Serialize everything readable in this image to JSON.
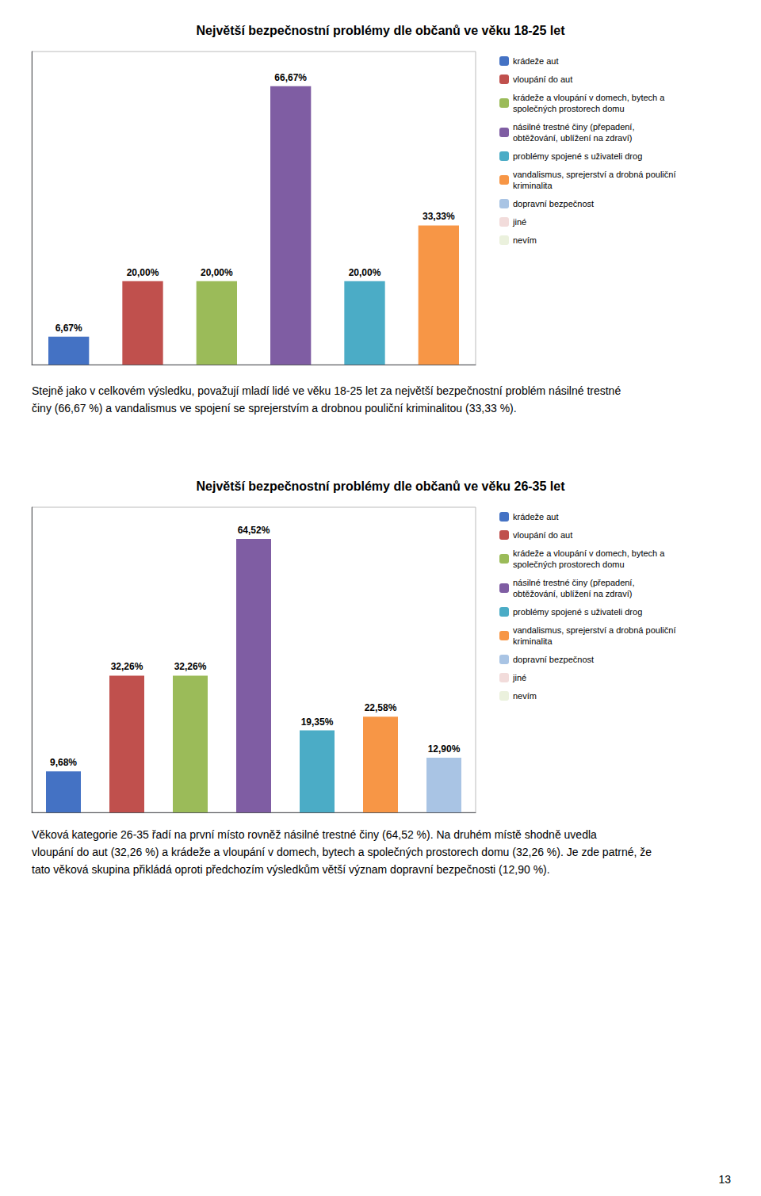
{
  "chart_data": [
    {
      "type": "bar",
      "title": "Největší bezpečnostní problémy dle občanů ve věku 18-25 let",
      "categories": [
        null,
        null,
        null,
        null,
        null,
        null
      ],
      "series": [
        {
          "name": "krádeže aut",
          "color": "#4472C4",
          "values": [
            6.67,
            null,
            null,
            null,
            null,
            null
          ],
          "value_labels": [
            "6,67%",
            null,
            null,
            null,
            null,
            null
          ]
        },
        {
          "name": "vloupání do aut",
          "color": "#C0504D",
          "values": [
            null,
            20.0,
            null,
            null,
            null,
            null
          ],
          "value_labels": [
            null,
            "20,00%",
            null,
            null,
            null,
            null
          ]
        },
        {
          "name": "krádeže a vloupání v domech, bytech a\nspolečných prostorech domu",
          "color": "#9BBB59",
          "values": [
            null,
            null,
            20.0,
            null,
            null,
            null
          ],
          "value_labels": [
            null,
            null,
            "20,00%",
            null,
            null,
            null
          ]
        },
        {
          "name": "násilné trestné činy (přepadení,\nobtěžování, ublížení na zdraví)",
          "color": "#7F5DA3",
          "values": [
            null,
            null,
            null,
            66.67,
            null,
            null
          ],
          "value_labels": [
            null,
            null,
            null,
            "66,67%",
            null,
            null
          ]
        },
        {
          "name": "problémy spojené s uživateli drog",
          "color": "#4BACC6",
          "values": [
            null,
            null,
            null,
            null,
            20.0,
            null
          ],
          "value_labels": [
            null,
            null,
            null,
            null,
            "20,00%",
            null
          ]
        },
        {
          "name": "vandalismus, sprejerství a drobná pouliční\nkriminalita",
          "color": "#F79646",
          "values": [
            null,
            null,
            null,
            null,
            null,
            33.33
          ],
          "value_labels": [
            null,
            null,
            null,
            null,
            null,
            "33,33%"
          ]
        },
        {
          "name": "dopravní bezpečnost",
          "color": "#A9C4E4",
          "values": [
            null,
            null,
            null,
            null,
            null,
            null
          ],
          "value_labels": [
            null,
            null,
            null,
            null,
            null,
            null
          ]
        },
        {
          "name": "jiné",
          "color": "#F2DCDB",
          "values": [
            null,
            null,
            null,
            null,
            null,
            null
          ],
          "value_labels": [
            null,
            null,
            null,
            null,
            null,
            null
          ]
        },
        {
          "name": "nevím",
          "color": "#EBF1DD",
          "values": [
            null,
            null,
            null,
            null,
            null,
            null
          ],
          "value_labels": [
            null,
            null,
            null,
            null,
            null,
            null
          ]
        }
      ],
      "ylim": [
        0,
        75
      ],
      "yticks": [],
      "grid": false,
      "tick_labels": false,
      "data_labels": true,
      "legend": "right",
      "annotations": [
        "Stejně jako v celkovém výsledku, považují mladí lidé ve věku 18-25 let za největší bezpečnostní problém násilné trestné činy (66,67 %) a vandalismus ve spojení se sprejerstvím a drobnou pouliční kriminalitou (33,33 %)."
      ]
    },
    {
      "type": "bar",
      "title": "Největší bezpečnostní problémy dle občanů ve věku 26-35 let",
      "categories": [
        null,
        null,
        null,
        null,
        null,
        null,
        null
      ],
      "series": [
        {
          "name": "krádeže aut",
          "color": "#4472C4",
          "values": [
            9.68,
            null,
            null,
            null,
            null,
            null,
            null
          ],
          "value_labels": [
            "9,68%",
            null,
            null,
            null,
            null,
            null,
            null
          ]
        },
        {
          "name": "vloupání do aut",
          "color": "#C0504D",
          "values": [
            null,
            32.26,
            null,
            null,
            null,
            null,
            null
          ],
          "value_labels": [
            null,
            "32,26%",
            null,
            null,
            null,
            null,
            null
          ]
        },
        {
          "name": "krádeže a vloupání v domech, bytech a\nspolečných prostorech domu",
          "color": "#9BBB59",
          "values": [
            null,
            null,
            32.26,
            null,
            null,
            null,
            null
          ],
          "value_labels": [
            null,
            null,
            "32,26%",
            null,
            null,
            null,
            null
          ]
        },
        {
          "name": "násilné trestné činy (přepadení,\nobtěžování, ublížení na zdraví)",
          "color": "#7F5DA3",
          "values": [
            null,
            null,
            null,
            64.52,
            null,
            null,
            null
          ],
          "value_labels": [
            null,
            null,
            null,
            "64,52%",
            null,
            null,
            null
          ]
        },
        {
          "name": "problémy spojené s uživateli drog",
          "color": "#4BACC6",
          "values": [
            null,
            null,
            null,
            null,
            19.35,
            null,
            null
          ],
          "value_labels": [
            null,
            null,
            null,
            null,
            "19,35%",
            null,
            null
          ]
        },
        {
          "name": "vandalismus, sprejerství a drobná pouliční\nkriminalita",
          "color": "#F79646",
          "values": [
            null,
            null,
            null,
            null,
            null,
            22.58,
            null
          ],
          "value_labels": [
            null,
            null,
            null,
            null,
            null,
            "22,58%",
            null
          ]
        },
        {
          "name": "dopravní bezpečnost",
          "color": "#A9C4E4",
          "values": [
            null,
            null,
            null,
            null,
            null,
            null,
            12.9
          ],
          "value_labels": [
            null,
            null,
            null,
            null,
            null,
            null,
            "12,90%"
          ]
        },
        {
          "name": "jiné",
          "color": "#F2DCDB",
          "values": [
            null,
            null,
            null,
            null,
            null,
            null,
            null
          ],
          "value_labels": [
            null,
            null,
            null,
            null,
            null,
            null,
            null
          ]
        },
        {
          "name": "nevím",
          "color": "#EBF1DD",
          "values": [
            null,
            null,
            null,
            null,
            null,
            null,
            null
          ],
          "value_labels": [
            null,
            null,
            null,
            null,
            null,
            null,
            null
          ]
        }
      ],
      "ylim": [
        0,
        72
      ],
      "yticks": [],
      "grid": false,
      "tick_labels": false,
      "data_labels": true,
      "legend": "right",
      "annotations": [
        "Věková kategorie 26-35 řadí na první místo rovněž násilné trestné činy (64,52 %). Na druhém místě shodně uvedla vloupání do aut (32,26 %) a krádeže a vloupání v domech, bytech a společných prostorech domu (32,26 %). Je zde patrné, že tato věková skupina přikládá oproti předchozím výsledkům větší význam dopravní bezpečnosti (12,90 %)."
      ]
    }
  ],
  "page_number": "13"
}
